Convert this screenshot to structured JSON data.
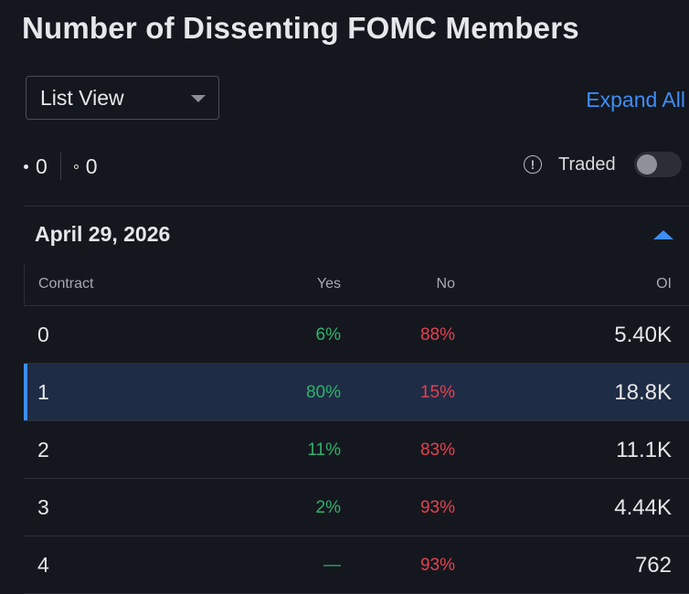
{
  "page": {
    "title": "Number of Dissenting FOMC Members"
  },
  "controls": {
    "view_select": "List View",
    "expand_label": "Expand All",
    "count_filled": "0",
    "count_hollow": "0",
    "traded_label": "Traded",
    "traded_toggle_on": false
  },
  "section": {
    "date": "April 29, 2026"
  },
  "table": {
    "headers": {
      "contract": "Contract",
      "yes": "Yes",
      "no": "No",
      "oi": "OI"
    },
    "rows": [
      {
        "contract": "0",
        "yes": "6%",
        "no": "88%",
        "oi": "5.40K"
      },
      {
        "contract": "1",
        "yes": "80%",
        "no": "15%",
        "oi": "18.8K"
      },
      {
        "contract": "2",
        "yes": "11%",
        "no": "83%",
        "oi": "11.1K"
      },
      {
        "contract": "3",
        "yes": "2%",
        "no": "93%",
        "oi": "4.44K"
      },
      {
        "contract": "4",
        "yes": "—",
        "no": "93%",
        "oi": "762"
      }
    ]
  },
  "colors": {
    "accent": "#3d8ef7",
    "yes": "#2fb36c",
    "no": "#e2424f",
    "selected_row": "#1f2c45"
  }
}
